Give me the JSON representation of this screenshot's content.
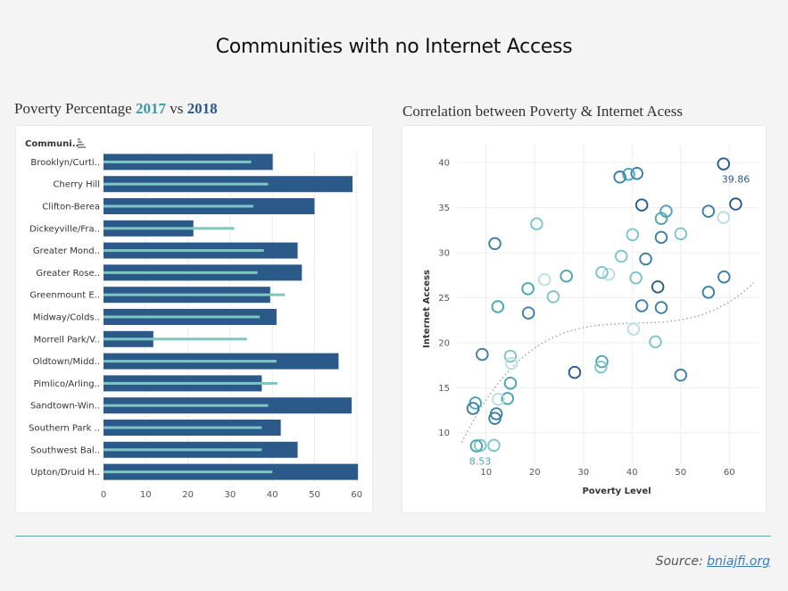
{
  "header": {
    "title": "Communities with no Internet Access"
  },
  "left_panel": {
    "title_prefix": "Poverty Percentage ",
    "title_2017": "2017",
    "title_vs": " vs ",
    "title_2018": "2018",
    "column_header": "Communi.."
  },
  "right_panel": {
    "title": "Correlation between Poverty & Internet Acess"
  },
  "footer": {
    "source_label": "Source: ",
    "source_link": "bniajfi.org "
  },
  "colors": {
    "bar_2018": "#2b5a8a",
    "bar_2017": "#7fc6c2",
    "scatter_palette": [
      "#2b5a8a",
      "#3a7ea6",
      "#4aa3b5",
      "#7ec4c7",
      "#b7e0df"
    ],
    "trend": "#999999"
  },
  "chart_data": [
    {
      "type": "bar",
      "categories": [
        "Brooklyn/Curti..",
        "Cherry Hill",
        "Clifton-Berea",
        "Dickeyville/Fra..",
        "Greater Mond..",
        "Greater Rose..",
        "Greenmount E..",
        "Midway/Colds..",
        "Morrell Park/V..",
        "Oldtown/Midd..",
        "Pimlico/Arling..",
        "Sandtown-Win..",
        "Southern Park ..",
        "Southwest Bal..",
        "Upton/Druid H.."
      ],
      "series": [
        {
          "values": [
            40.1,
            59.0,
            50.0,
            21.3,
            46.0,
            47.0,
            39.5,
            41.0,
            11.8,
            55.7,
            37.5,
            58.8,
            42.0,
            46.0,
            60.3
          ]
        },
        {
          "values": [
            35.0,
            39.0,
            35.5,
            31.0,
            38.0,
            36.5,
            43.0,
            37.0,
            34.0,
            41.0,
            41.2,
            39.0,
            37.5,
            37.5,
            40.0
          ]
        }
      ],
      "xlim": [
        0,
        62
      ],
      "xticks": [
        0,
        10,
        20,
        30,
        40,
        50,
        60
      ]
    },
    {
      "type": "scatter",
      "xlabel": "Poverty Level",
      "ylabel": "Internet Access",
      "xlim": [
        4,
        66
      ],
      "ylim": [
        6.5,
        42
      ],
      "xticks": [
        10,
        20,
        30,
        40,
        50,
        60
      ],
      "yticks": [
        10,
        15,
        20,
        25,
        30,
        35,
        40
      ],
      "points": [
        {
          "x": 58.8,
          "y": 39.86,
          "shade": 0
        },
        {
          "x": 61.3,
          "y": 35.4,
          "shade": 0
        },
        {
          "x": 58.9,
          "y": 27.3,
          "shade": 1
        },
        {
          "x": 55.7,
          "y": 34.6,
          "shade": 1
        },
        {
          "x": 55.7,
          "y": 25.6,
          "shade": 1
        },
        {
          "x": 58.8,
          "y": 33.9,
          "shade": 4
        },
        {
          "x": 50.0,
          "y": 32.1,
          "shade": 3
        },
        {
          "x": 50.0,
          "y": 16.4,
          "shade": 1
        },
        {
          "x": 47.0,
          "y": 34.6,
          "shade": 2
        },
        {
          "x": 46.0,
          "y": 33.8,
          "shade": 2
        },
        {
          "x": 46.0,
          "y": 31.7,
          "shade": 1
        },
        {
          "x": 45.3,
          "y": 26.2,
          "shade": 0
        },
        {
          "x": 46.0,
          "y": 23.9,
          "shade": 1
        },
        {
          "x": 44.8,
          "y": 20.1,
          "shade": 3
        },
        {
          "x": 41.0,
          "y": 38.8,
          "shade": 1
        },
        {
          "x": 39.3,
          "y": 38.7,
          "shade": 2
        },
        {
          "x": 37.5,
          "y": 38.4,
          "shade": 1
        },
        {
          "x": 42.0,
          "y": 35.3,
          "shade": 0
        },
        {
          "x": 40.1,
          "y": 32.0,
          "shade": 3
        },
        {
          "x": 42.8,
          "y": 29.3,
          "shade": 1
        },
        {
          "x": 40.8,
          "y": 27.2,
          "shade": 3
        },
        {
          "x": 42.0,
          "y": 24.1,
          "shade": 1
        },
        {
          "x": 40.3,
          "y": 21.5,
          "shade": 4
        },
        {
          "x": 37.8,
          "y": 29.6,
          "shade": 3
        },
        {
          "x": 35.2,
          "y": 27.6,
          "shade": 4
        },
        {
          "x": 33.8,
          "y": 27.8,
          "shade": 3
        },
        {
          "x": 33.8,
          "y": 17.9,
          "shade": 2
        },
        {
          "x": 33.6,
          "y": 17.3,
          "shade": 3
        },
        {
          "x": 28.2,
          "y": 16.7,
          "shade": 0
        },
        {
          "x": 26.5,
          "y": 27.4,
          "shade": 2
        },
        {
          "x": 23.8,
          "y": 25.1,
          "shade": 3
        },
        {
          "x": 22.0,
          "y": 27.0,
          "shade": 4
        },
        {
          "x": 20.4,
          "y": 33.2,
          "shade": 3
        },
        {
          "x": 18.6,
          "y": 26.0,
          "shade": 2
        },
        {
          "x": 18.7,
          "y": 23.3,
          "shade": 1
        },
        {
          "x": 15.0,
          "y": 18.5,
          "shade": 3
        },
        {
          "x": 15.2,
          "y": 17.7,
          "shade": 4
        },
        {
          "x": 15.0,
          "y": 15.5,
          "shade": 2
        },
        {
          "x": 14.4,
          "y": 13.8,
          "shade": 2
        },
        {
          "x": 12.5,
          "y": 13.7,
          "shade": 4
        },
        {
          "x": 12.4,
          "y": 24.0,
          "shade": 2
        },
        {
          "x": 11.8,
          "y": 31.0,
          "shade": 1
        },
        {
          "x": 12.1,
          "y": 12.1,
          "shade": 1
        },
        {
          "x": 11.8,
          "y": 11.6,
          "shade": 1
        },
        {
          "x": 11.6,
          "y": 8.6,
          "shade": 3
        },
        {
          "x": 9.2,
          "y": 18.7,
          "shade": 1
        },
        {
          "x": 8.8,
          "y": 8.6,
          "shade": 3
        },
        {
          "x": 7.8,
          "y": 13.3,
          "shade": 2
        },
        {
          "x": 7.3,
          "y": 12.7,
          "shade": 1
        },
        {
          "x": 8.0,
          "y": 8.53,
          "shade": 2
        }
      ],
      "annotations": [
        {
          "text": "39.86",
          "x": 58.8,
          "y": 39.86,
          "color": "#2b5a8a"
        },
        {
          "text": "8.53",
          "x": 8.0,
          "y": 8.53,
          "color": "#4aa3b5"
        }
      ],
      "trend_coeffs": [
        2.6895,
        1.4108,
        -0.034425,
        0.000283
      ]
    }
  ]
}
